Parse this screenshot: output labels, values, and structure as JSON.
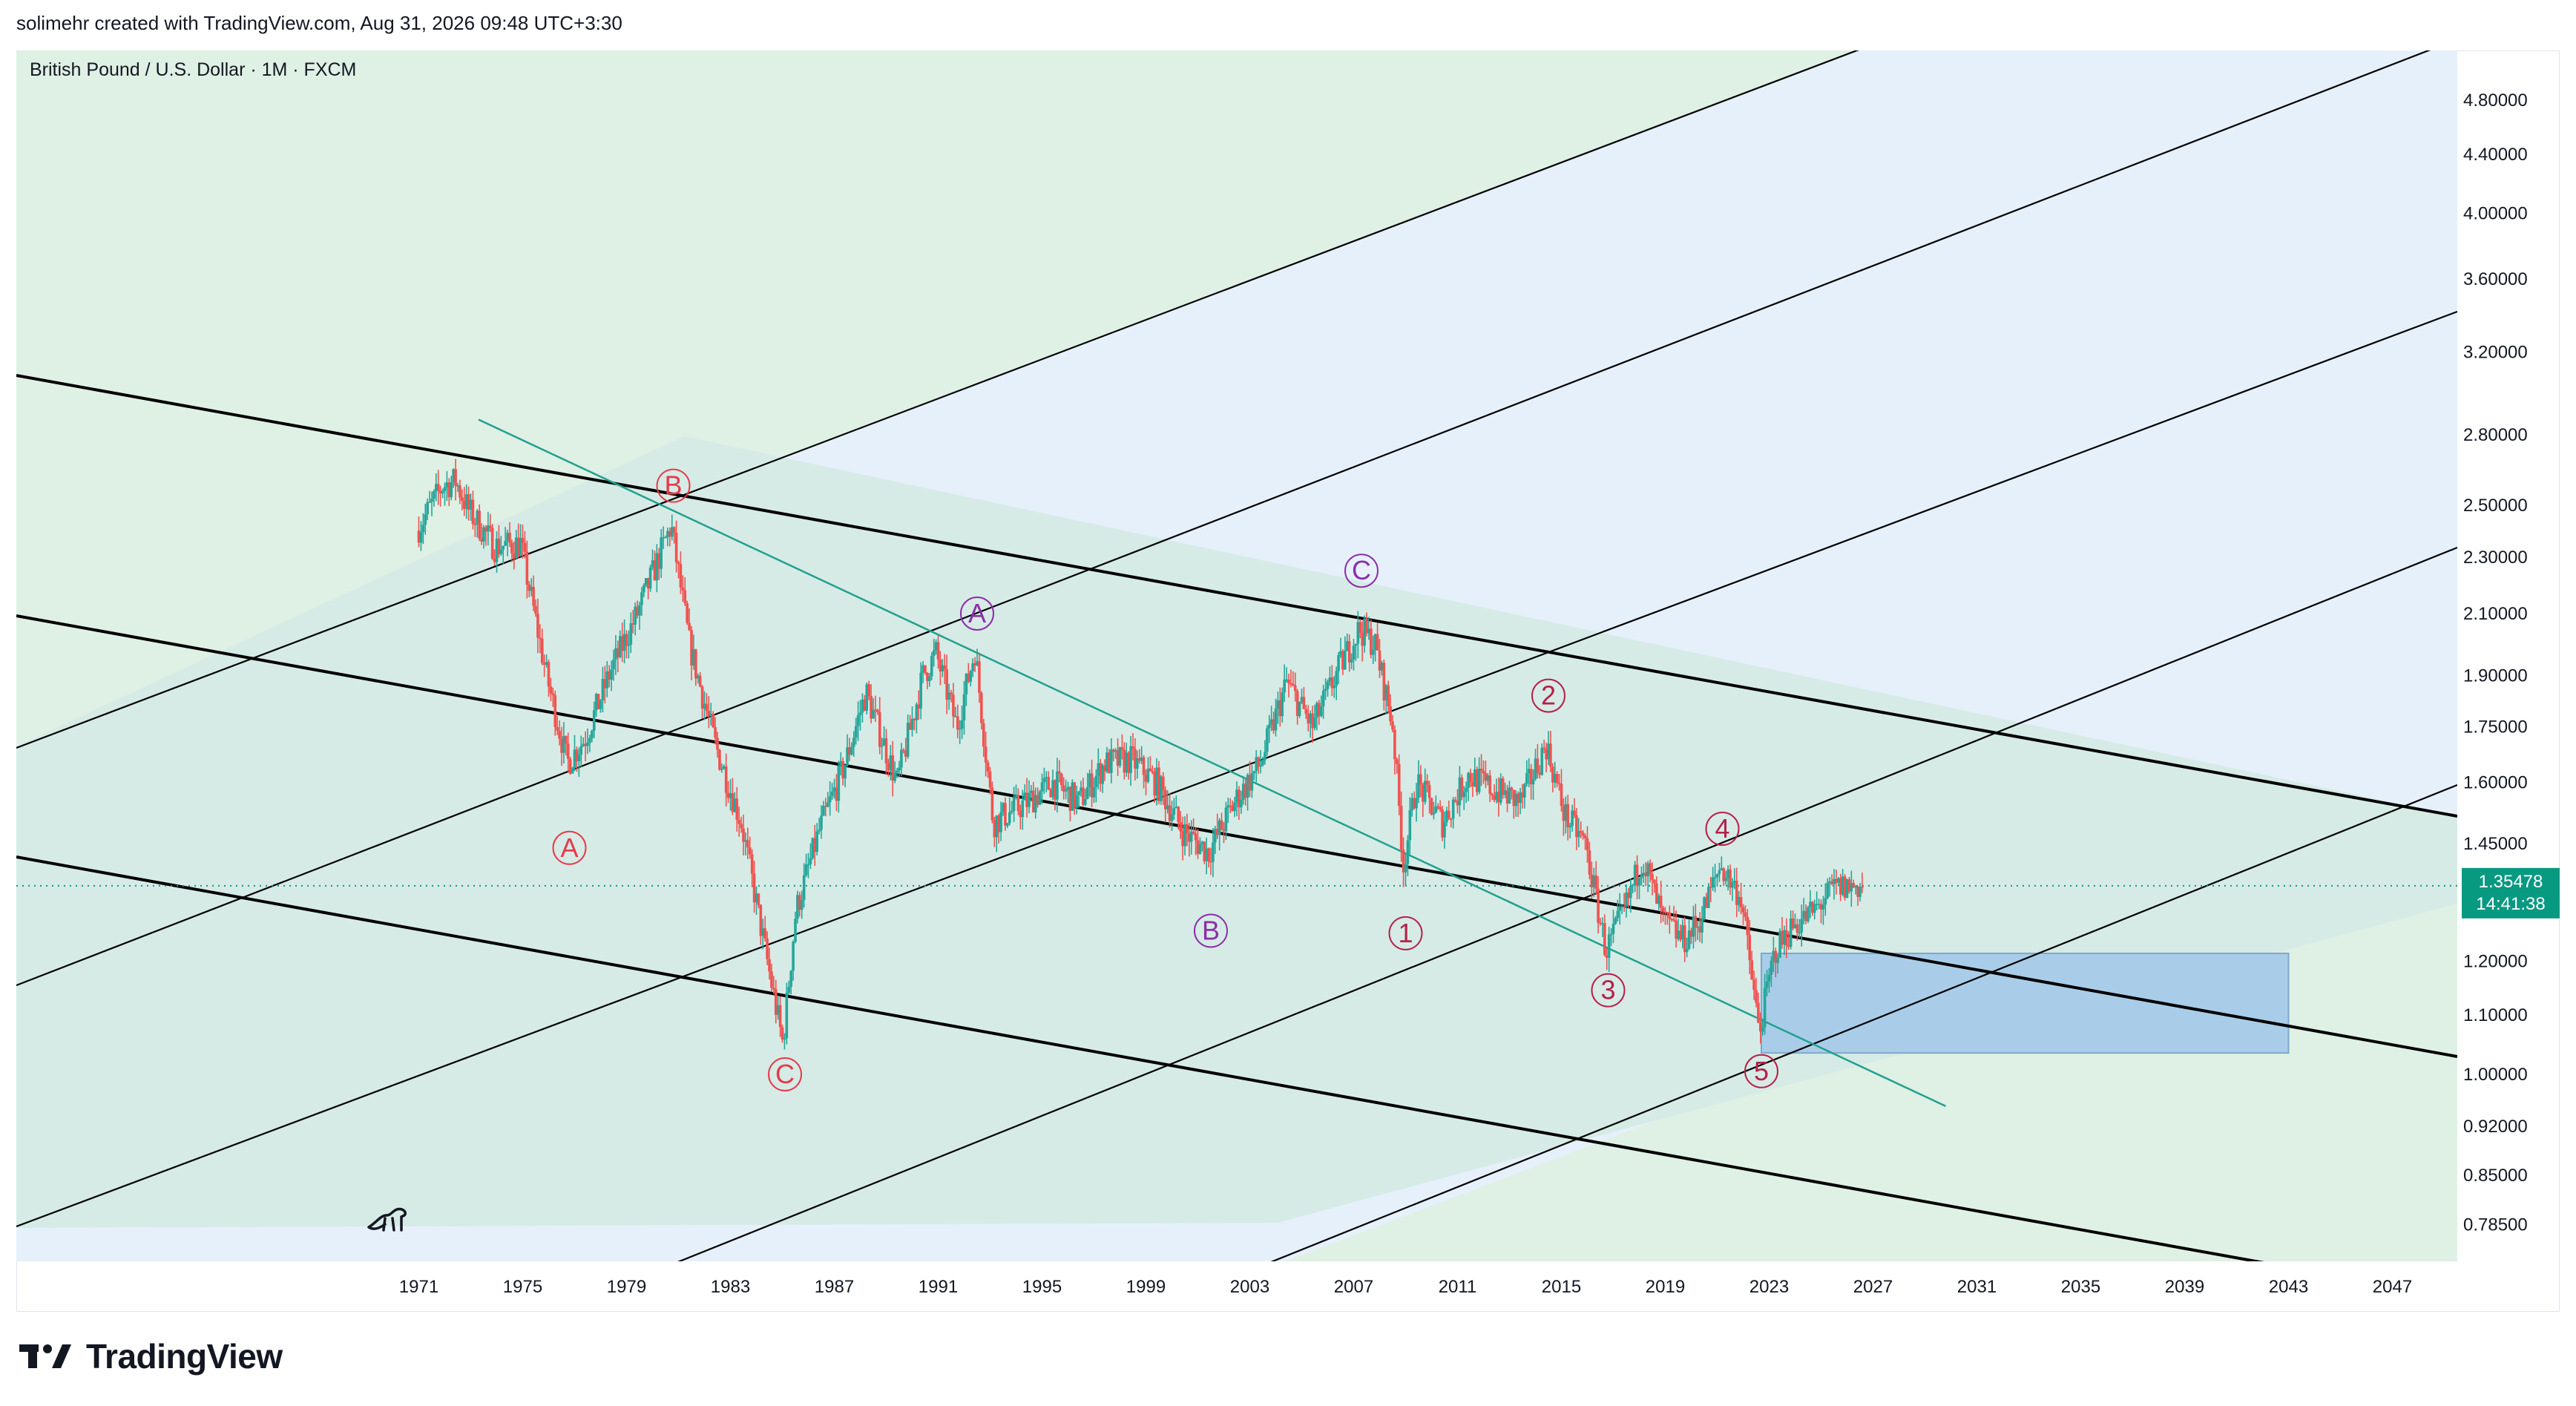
{
  "header": {
    "attribution": "solimehr created with TradingView.com, Aug 31, 2026 09:48 UTC+3:30"
  },
  "symbol": {
    "title": "British Pound / U.S. Dollar · 1M · FXCM"
  },
  "price_badge": {
    "price": "1.35478",
    "countdown": "14:41:38",
    "color": "#089981"
  },
  "footer": {
    "brand": "TradingView"
  },
  "colors": {
    "channel_fill_blue": "#e6f0fb",
    "channel_fill_green": "#dff0e4",
    "overlap_fill": "#d6ebe6",
    "target_box": "#a9cde8",
    "trendline_teal": "#22a08f",
    "candle_up": "#26a69a",
    "candle_down": "#ef5350",
    "wave_red": "#e8394a",
    "wave_purple": "#8b2fa8",
    "wave_maroon": "#b5214a"
  },
  "chart_data": {
    "type": "candlestick",
    "title": "British Pound / U.S. Dollar · 1M · FXCM",
    "scale": "log",
    "x_ticks": [
      "1971",
      "1975",
      "1979",
      "1983",
      "1987",
      "1991",
      "1995",
      "1999",
      "2003",
      "2007",
      "2011",
      "2015",
      "2019",
      "2023",
      "2027",
      "2031",
      "2035",
      "2039",
      "2043",
      "2047"
    ],
    "y_ticks": [
      "4.80000",
      "4.40000",
      "4.00000",
      "3.60000",
      "3.20000",
      "2.80000",
      "2.50000",
      "2.30000",
      "2.10000",
      "1.90000",
      "1.75000",
      "1.60000",
      "1.45000",
      "1.20000",
      "1.10000",
      "1.00000",
      "0.92000",
      "0.85000",
      "0.78500"
    ],
    "y_range": [
      0.74,
      5.2
    ],
    "x_range": [
      1955.5,
      2049.5
    ],
    "last_price": 1.35478,
    "price_path": [
      [
        1971.0,
        2.4
      ],
      [
        1972.0,
        2.58
      ],
      [
        1972.5,
        2.6
      ],
      [
        1973.0,
        2.48
      ],
      [
        1974.0,
        2.34
      ],
      [
        1975.0,
        2.35
      ],
      [
        1976.0,
        1.9
      ],
      [
        1976.8,
        1.65
      ],
      [
        1977.5,
        1.72
      ],
      [
        1978.5,
        1.92
      ],
      [
        1979.5,
        2.1
      ],
      [
        1980.8,
        2.42
      ],
      [
        1981.5,
        2.0
      ],
      [
        1982.5,
        1.7
      ],
      [
        1983.5,
        1.5
      ],
      [
        1984.5,
        1.2
      ],
      [
        1985.1,
        1.05
      ],
      [
        1985.6,
        1.3
      ],
      [
        1986.5,
        1.48
      ],
      [
        1987.5,
        1.65
      ],
      [
        1988.3,
        1.85
      ],
      [
        1989.5,
        1.6
      ],
      [
        1990.5,
        1.9
      ],
      [
        1991.0,
        1.97
      ],
      [
        1991.8,
        1.75
      ],
      [
        1992.5,
        1.98
      ],
      [
        1993.2,
        1.5
      ],
      [
        1994.5,
        1.55
      ],
      [
        1995.5,
        1.6
      ],
      [
        1996.5,
        1.55
      ],
      [
        1997.5,
        1.65
      ],
      [
        1998.5,
        1.66
      ],
      [
        1999.5,
        1.6
      ],
      [
        2000.5,
        1.48
      ],
      [
        2001.5,
        1.43
      ],
      [
        2002.5,
        1.55
      ],
      [
        2003.5,
        1.65
      ],
      [
        2004.5,
        1.88
      ],
      [
        2005.5,
        1.75
      ],
      [
        2006.5,
        1.92
      ],
      [
        2007.3,
        2.05
      ],
      [
        2007.9,
        2.0
      ],
      [
        2008.6,
        1.75
      ],
      [
        2009.0,
        1.4
      ],
      [
        2009.5,
        1.6
      ],
      [
        2010.5,
        1.5
      ],
      [
        2011.5,
        1.62
      ],
      [
        2012.5,
        1.58
      ],
      [
        2013.5,
        1.55
      ],
      [
        2014.5,
        1.7
      ],
      [
        2015.2,
        1.52
      ],
      [
        2016.0,
        1.45
      ],
      [
        2016.8,
        1.22
      ],
      [
        2017.5,
        1.3
      ],
      [
        2018.2,
        1.42
      ],
      [
        2019.0,
        1.28
      ],
      [
        2019.8,
        1.24
      ],
      [
        2020.4,
        1.28
      ],
      [
        2021.2,
        1.4
      ],
      [
        2022.0,
        1.33
      ],
      [
        2022.7,
        1.07
      ],
      [
        2023.3,
        1.22
      ],
      [
        2024.0,
        1.27
      ],
      [
        2024.8,
        1.3
      ],
      [
        2025.6,
        1.35
      ],
      [
        2026.6,
        1.35478
      ]
    ],
    "wave_labels": [
      {
        "label": "A",
        "year": 1976.8,
        "price": 1.44,
        "style": "red"
      },
      {
        "label": "B",
        "year": 1980.8,
        "price": 2.58,
        "style": "red"
      },
      {
        "label": "C",
        "year": 1985.1,
        "price": 1.0,
        "style": "red"
      },
      {
        "label": "A",
        "year": 1992.5,
        "price": 2.1,
        "style": "purple"
      },
      {
        "label": "B",
        "year": 2001.5,
        "price": 1.26,
        "style": "purple"
      },
      {
        "label": "C",
        "year": 2007.3,
        "price": 2.25,
        "style": "purple"
      },
      {
        "label": "1",
        "year": 2009.0,
        "price": 1.255,
        "style": "maroon"
      },
      {
        "label": "2",
        "year": 2014.5,
        "price": 1.84,
        "style": "maroon"
      },
      {
        "label": "3",
        "year": 2016.8,
        "price": 1.145,
        "style": "maroon"
      },
      {
        "label": "4",
        "year": 2021.2,
        "price": 1.485,
        "style": "maroon"
      },
      {
        "label": "5",
        "year": 2022.7,
        "price": 1.005,
        "style": "maroon"
      }
    ],
    "target_zone": {
      "from_year": 2022.7,
      "to_year": 2043.0,
      "price_low": 1.035,
      "price_high": 1.215
    },
    "grid": false
  }
}
